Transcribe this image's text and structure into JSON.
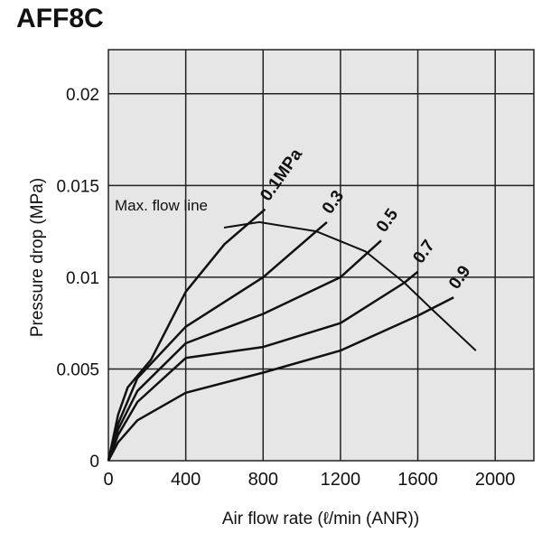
{
  "title": "AFF8C",
  "chart_data": {
    "type": "line",
    "title": "AFF8C",
    "xlabel": "Air flow rate (ℓ/min (ANR))",
    "ylabel": "Pressure drop (MPa)",
    "xlim": [
      0,
      2200
    ],
    "ylim": [
      0,
      0.0224
    ],
    "xticks": [
      "0",
      "400",
      "800",
      "1200",
      "1600",
      "2000"
    ],
    "xtick_values": [
      0,
      400,
      800,
      1200,
      1600,
      2000
    ],
    "yticks": [
      "0",
      "0.005",
      "0.01",
      "0.015",
      "0.02"
    ],
    "ytick_values": [
      0,
      0.005,
      0.01,
      0.015,
      0.02
    ],
    "grid": true,
    "series": [
      {
        "name": "0.1MPa",
        "x": [
          0,
          50,
          100,
          220,
          400,
          600,
          810
        ],
        "y": [
          0,
          0.0025,
          0.004,
          0.0055,
          0.0092,
          0.0118,
          0.0137
        ]
      },
      {
        "name": "0.3",
        "x": [
          0,
          50,
          150,
          400,
          800,
          1130
        ],
        "y": [
          0,
          0.002,
          0.0045,
          0.0073,
          0.01,
          0.013
        ]
      },
      {
        "name": "0.5",
        "x": [
          0,
          50,
          150,
          400,
          800,
          1200,
          1410
        ],
        "y": [
          0,
          0.0017,
          0.0038,
          0.0064,
          0.008,
          0.01,
          0.012
        ]
      },
      {
        "name": "0.7",
        "x": [
          0,
          50,
          150,
          400,
          800,
          1200,
          1530,
          1600
        ],
        "y": [
          0,
          0.0014,
          0.0032,
          0.0056,
          0.0062,
          0.0075,
          0.0097,
          0.0103
        ]
      },
      {
        "name": "0.9",
        "x": [
          0,
          50,
          150,
          400,
          800,
          1200,
          1600,
          1785
        ],
        "y": [
          0,
          0.001,
          0.0022,
          0.0037,
          0.0048,
          0.006,
          0.0079,
          0.0089
        ]
      }
    ],
    "max_flow_line": {
      "label": "Max. flow line",
      "x": [
        598,
        780,
        1075,
        1330,
        1530,
        1678,
        1900
      ],
      "y": [
        0.0127,
        0.013,
        0.0125,
        0.0114,
        0.0097,
        0.0082,
        0.006
      ]
    }
  }
}
